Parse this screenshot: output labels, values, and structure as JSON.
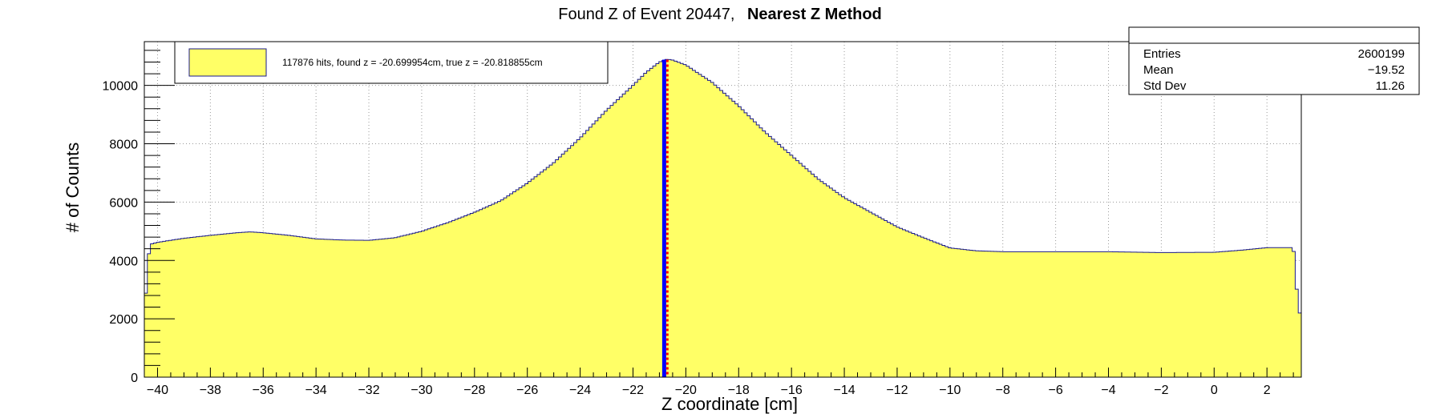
{
  "chart_data": {
    "type": "area",
    "title": "Found Z of Event 20447,",
    "title_bold": "Nearest Z Method",
    "xlabel": "Z coordinate [cm]",
    "ylabel": "# of Counts",
    "xlim": [
      -40.5,
      3.3
    ],
    "ylim": [
      0,
      11500
    ],
    "x_ticks": [
      -40,
      -38,
      -36,
      -34,
      -32,
      -30,
      -28,
      -26,
      -24,
      -22,
      -20,
      -18,
      -16,
      -14,
      -12,
      -10,
      -8,
      -6,
      -4,
      -2,
      0,
      2
    ],
    "y_ticks": [
      0,
      2000,
      4000,
      6000,
      8000,
      10000
    ],
    "grid": true,
    "fill_color": "#ffff66",
    "line_color": "#1a1a8c",
    "series": [
      {
        "x": [
          -40.5,
          -40.3,
          -40,
          -39,
          -38,
          -37,
          -36.5,
          -36,
          -35,
          -34,
          -33,
          -32,
          -31,
          -30,
          -29,
          -28,
          -27,
          -26,
          -25,
          -24,
          -23,
          -22,
          -21.5,
          -21,
          -20.7,
          -20.5,
          -20,
          -19,
          -18,
          -17,
          -16,
          -15,
          -14,
          -13,
          -12,
          -11,
          -10,
          -9,
          -8,
          -6,
          -4,
          -2,
          0,
          1,
          2,
          3,
          3.2,
          3.3
        ],
        "y": [
          2200,
          4550,
          4620,
          4760,
          4860,
          4950,
          4980,
          4950,
          4860,
          4740,
          4700,
          4690,
          4780,
          5000,
          5300,
          5650,
          6050,
          6650,
          7350,
          8200,
          9150,
          10000,
          10450,
          10800,
          10900,
          10870,
          10700,
          10100,
          9300,
          8400,
          7600,
          6800,
          6150,
          5650,
          5150,
          4780,
          4430,
          4330,
          4300,
          4300,
          4300,
          4270,
          4280,
          4350,
          4440,
          4440,
          2200,
          2200
        ]
      }
    ],
    "markers": [
      {
        "name": "found z",
        "x": -20.699954,
        "color": "#ff0000"
      },
      {
        "name": "true z",
        "x": -20.818855,
        "color": "#0000ff"
      }
    ],
    "legend": {
      "position": "top-left",
      "entries": [
        {
          "label": "117876 hits, found z = -20.699954cm, true z = -20.818855cm",
          "color": "#ffff66"
        }
      ]
    },
    "stats": {
      "position": "top-right",
      "entries_label": "Entries",
      "entries_value": "2600199",
      "mean_label": "Mean",
      "mean_value": "−19.52",
      "std_label": "Std Dev",
      "std_value": "11.26"
    }
  }
}
